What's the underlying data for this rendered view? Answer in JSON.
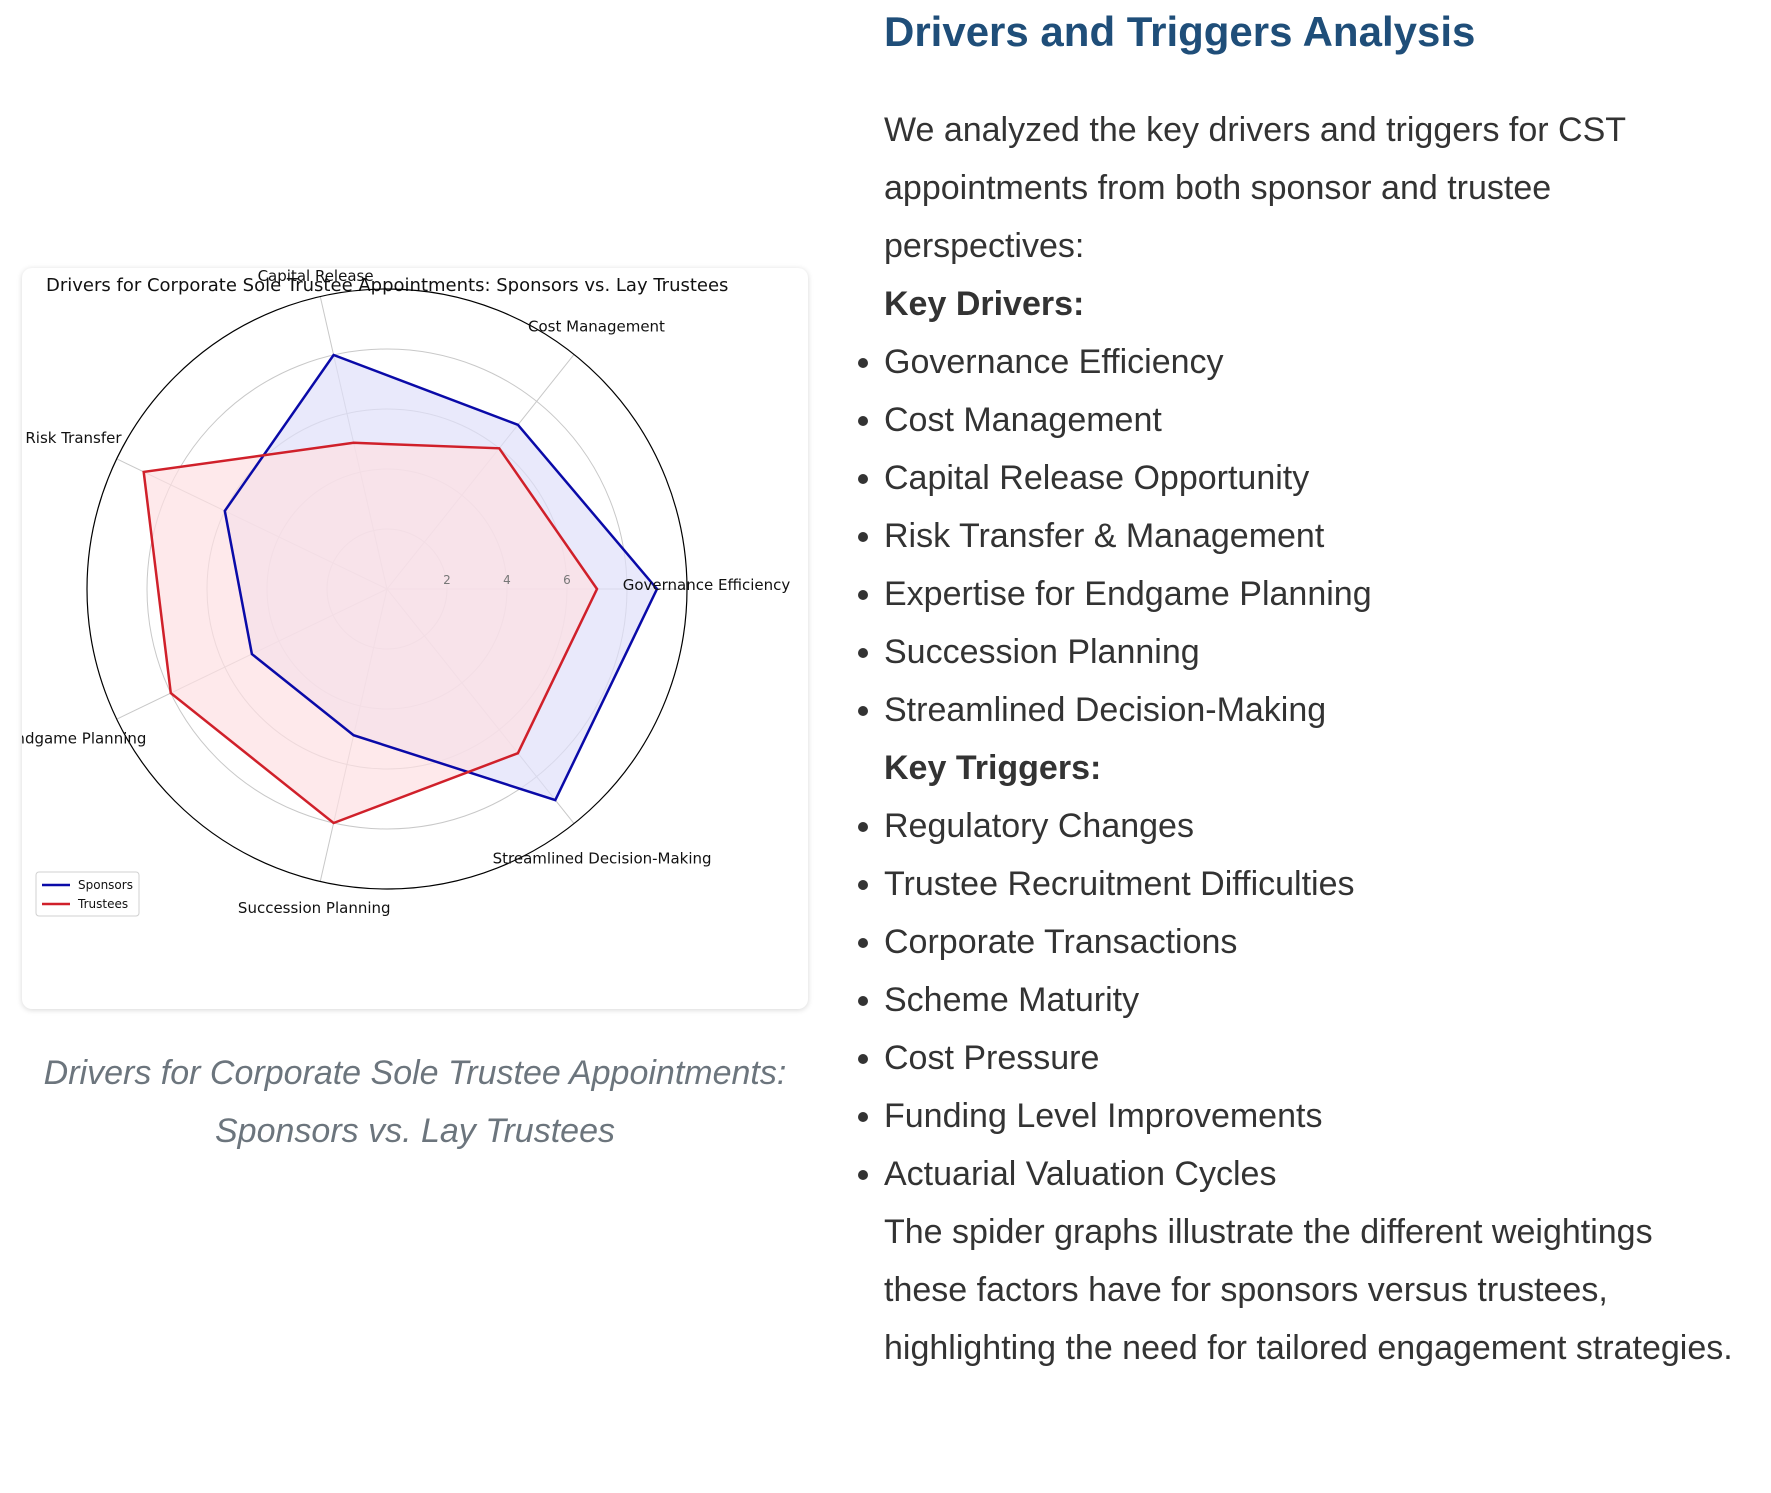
{
  "chart_card": {
    "caption": "Drivers for Corporate Sole Trustee Appointments: Sponsors vs. Lay Trustees"
  },
  "chart_data": {
    "type": "radar",
    "title": "Drivers for Corporate Sole Trustee Appointments: Sponsors vs. Lay Trustees",
    "categories": [
      "Governance Efficiency",
      "Cost Management",
      "Capital Release",
      "Risk Transfer",
      "Endgame Planning",
      "Succession Planning",
      "Streamlined Decision-Making"
    ],
    "radial_ticks": [
      "2",
      "4",
      "6"
    ],
    "rmax": 10,
    "series": [
      {
        "name": "Sponsors",
        "values": [
          9,
          7,
          8,
          6,
          5,
          5,
          9
        ],
        "color": "#0a0aa8",
        "fill": "#dfe0fa"
      },
      {
        "name": "Trustees",
        "values": [
          7,
          6,
          5,
          9,
          8,
          8,
          7
        ],
        "color": "#d0202a",
        "fill": "#fde0e2"
      }
    ],
    "legend_position": "bottom-left",
    "grid": true
  },
  "content": {
    "title": "Drivers and Triggers Analysis",
    "intro": "We analyzed the key drivers and triggers for CST appointments from both sponsor and trustee perspectives:",
    "drivers_heading": "Key Drivers:",
    "drivers": [
      "Governance Efficiency",
      "Cost Management",
      "Capital Release Opportunity",
      "Risk Transfer & Management",
      "Expertise for Endgame Planning",
      "Succession Planning",
      "Streamlined Decision-Making"
    ],
    "triggers_heading": "Key Triggers:",
    "triggers": [
      "Regulatory Changes",
      "Trustee Recruitment Difficulties",
      "Corporate Transactions",
      "Scheme Maturity",
      "Cost Pressure",
      "Funding Level Improvements",
      "Actuarial Valuation Cycles"
    ],
    "conclusion": "The spider graphs illustrate the different weightings these factors have for sponsors versus trustees, highlighting the need for tailored engagement strategies."
  }
}
